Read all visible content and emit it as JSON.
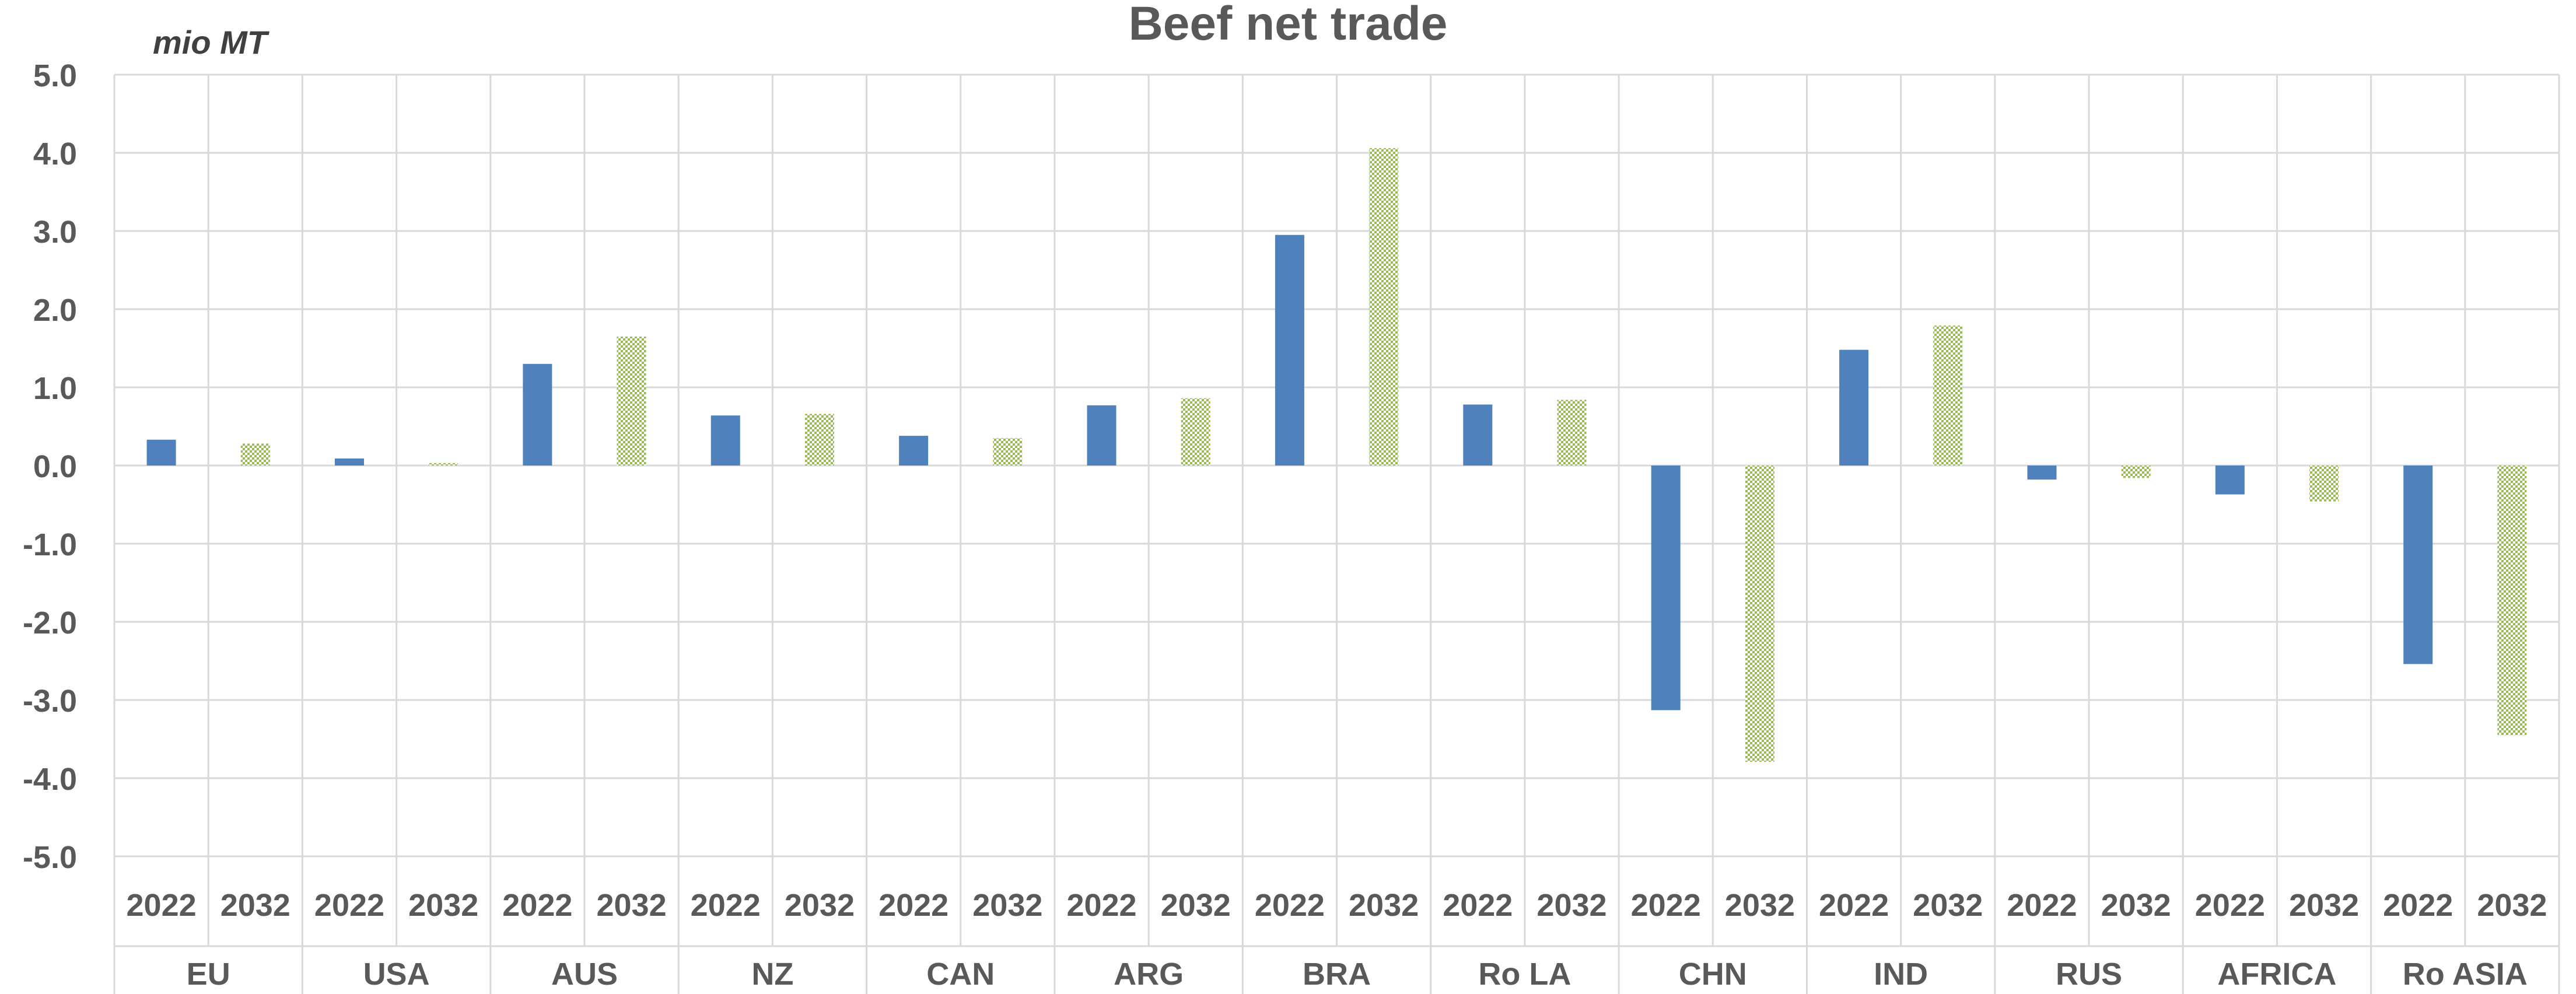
{
  "chart_data": {
    "type": "bar",
    "title": "Beef net trade",
    "ylabel": "mio MT",
    "xlabel": "",
    "ylim": [
      -5,
      5
    ],
    "yticks": [
      "5.0",
      "4.0",
      "3.0",
      "2.0",
      "1.0",
      "0.0",
      "-1.0",
      "-2.0",
      "-3.0",
      "-4.0",
      "-5.0"
    ],
    "grid": true,
    "legend": "none",
    "groups": [
      "EU",
      "USA",
      "AUS",
      "NZ",
      "CAN",
      "ARG",
      "BRA",
      "Ro LA",
      "CHN",
      "IND",
      "RUS",
      "AFRICA",
      "Ro ASIA"
    ],
    "series": [
      {
        "year": "2022",
        "color": "#4f81bd",
        "values": [
          0.33,
          0.09,
          1.3,
          0.64,
          0.38,
          0.77,
          2.95,
          0.78,
          -3.13,
          1.48,
          -0.18,
          -0.37,
          -2.54
        ]
      },
      {
        "year": "2032",
        "color": "#9bbb59",
        "values": [
          0.28,
          0.03,
          1.65,
          0.66,
          0.35,
          0.86,
          4.06,
          0.84,
          -3.79,
          1.79,
          -0.16,
          -0.46,
          -3.45
        ]
      }
    ]
  }
}
